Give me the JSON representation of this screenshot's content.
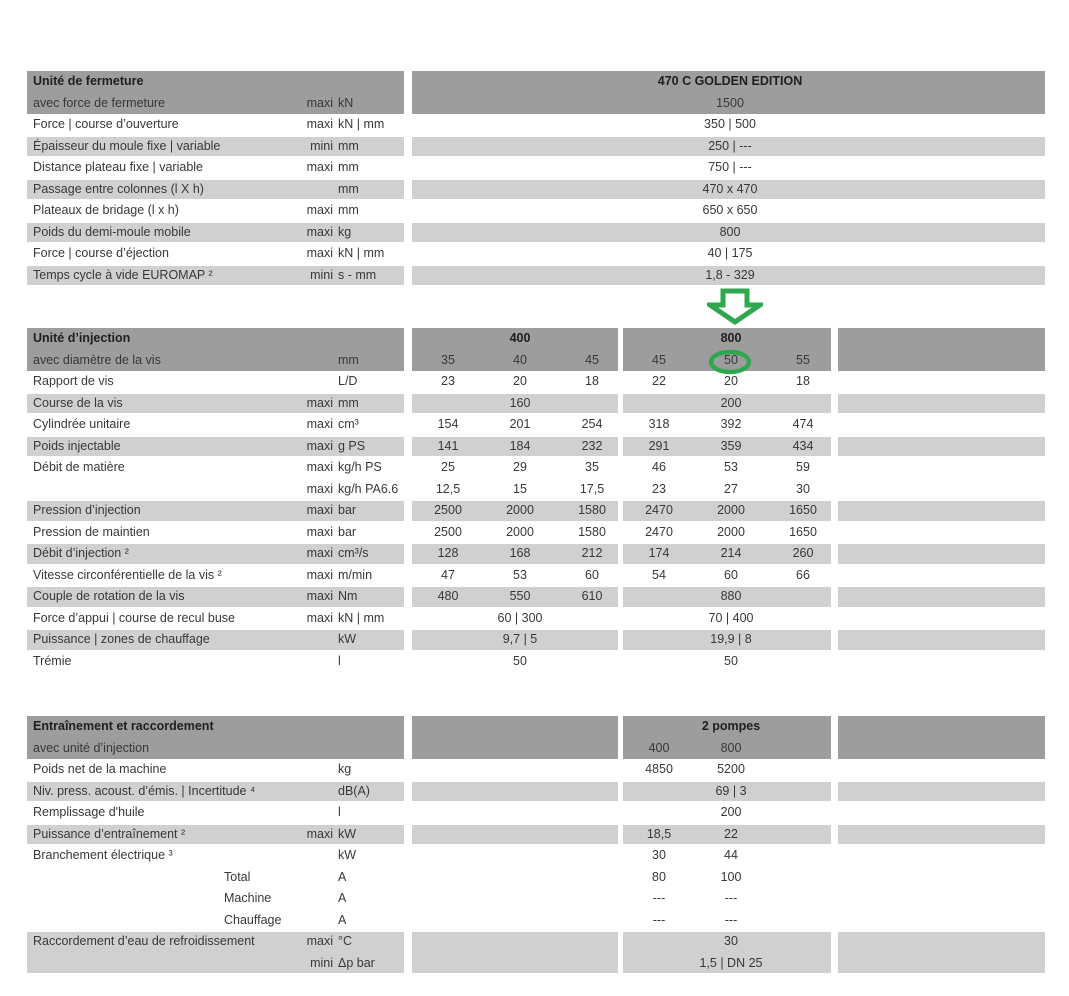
{
  "colors": {
    "dark_band": "#9d9d9d",
    "light_band": "#d0d0d0",
    "text": "#383838",
    "title_text": "#1f1f1f",
    "annotation_green": "#2ea84f",
    "background": "#ffffff"
  },
  "annotations": {
    "arrow": {
      "shape": "block-arrow-down",
      "color": "#2ea84f",
      "points_to": "800"
    },
    "circle": {
      "shape": "ellipse-outline",
      "color": "#2ea84f",
      "around_value": "50"
    }
  },
  "sections": [
    {
      "id": "unite-de-fermeture",
      "title": "Unité de fermeture",
      "model_header": "470 C GOLDEN EDITION",
      "subtitle_row": {
        "label": "avec force de fermeture",
        "qualifier": "maxi",
        "unit": "kN",
        "value": "1500"
      },
      "rows": [
        {
          "label": "Force | course d’ouverture",
          "qualifier": "maxi",
          "unit": "kN | mm",
          "value": "350 | 500",
          "band": false
        },
        {
          "label": "Épaisseur du moule fixe | variable",
          "qualifier": "mini",
          "unit": "mm",
          "value": "250 | ---",
          "band": true
        },
        {
          "label": "Distance plateau fixe | variable",
          "qualifier": "maxi",
          "unit": "mm",
          "value": "750 | ---",
          "band": false
        },
        {
          "label": "Passage entre colonnes (l X h)",
          "qualifier": "",
          "unit": "mm",
          "value": "470 x 470",
          "band": true
        },
        {
          "label": "Plateaux de bridage (l x h)",
          "qualifier": "maxi",
          "unit": "mm",
          "value": "650 x 650",
          "band": false
        },
        {
          "label": "Poids du demi-moule mobile",
          "qualifier": "maxi",
          "unit": "kg",
          "value": "800",
          "band": true
        },
        {
          "label": "Force | course d’éjection",
          "qualifier": "maxi",
          "unit": "kN | mm",
          "value": "40 | 175",
          "band": false
        },
        {
          "label": "Temps cycle à vide EUROMAP ²",
          "qualifier": "mini",
          "unit": "s - mm",
          "value": "1,8 - 329",
          "band": true
        }
      ]
    },
    {
      "id": "unite-d-injection",
      "title": "Unité d’injection",
      "subtitle_row": {
        "label": "avec diamètre de la vis",
        "qualifier": "",
        "unit": "mm"
      },
      "groups": [
        {
          "title": "400",
          "diameters": [
            "35",
            "40",
            "45"
          ]
        },
        {
          "title": "800",
          "diameters": [
            "45",
            "50",
            "55"
          ]
        }
      ],
      "rows": [
        {
          "label": "Rapport de vis",
          "qualifier": "",
          "unit": "L/D",
          "g1": [
            "23",
            "20",
            "18"
          ],
          "g2": [
            "22",
            "20",
            "18"
          ],
          "band": false
        },
        {
          "label": "Course de la vis",
          "qualifier": "maxi",
          "unit": "mm",
          "g1": "160",
          "g2": "200",
          "band": true
        },
        {
          "label": "Cylindrée unitaire",
          "qualifier": "maxi",
          "unit": "cm³",
          "g1": [
            "154",
            "201",
            "254"
          ],
          "g2": [
            "318",
            "392",
            "474"
          ],
          "band": false
        },
        {
          "label": "Poids injectable",
          "qualifier": "maxi",
          "unit": "g PS",
          "g1": [
            "141",
            "184",
            "232"
          ],
          "g2": [
            "291",
            "359",
            "434"
          ],
          "band": true
        },
        {
          "label": "Débit de matière",
          "qualifier": "maxi",
          "unit": "kg/h PS",
          "g1": [
            "25",
            "29",
            "35"
          ],
          "g2": [
            "46",
            "53",
            "59"
          ],
          "band": false
        },
        {
          "label": "",
          "qualifier": "maxi",
          "unit": "kg/h PA6.6",
          "g1": [
            "12,5",
            "15",
            "17,5"
          ],
          "g2": [
            "23",
            "27",
            "30"
          ],
          "band": false
        },
        {
          "label": "Pression d’injection",
          "qualifier": "maxi",
          "unit": "bar",
          "g1": [
            "2500",
            "2000",
            "1580"
          ],
          "g2": [
            "2470",
            "2000",
            "1650"
          ],
          "band": true
        },
        {
          "label": "Pression de maintien",
          "qualifier": "maxi",
          "unit": "bar",
          "g1": [
            "2500",
            "2000",
            "1580"
          ],
          "g2": [
            "2470",
            "2000",
            "1650"
          ],
          "band": false
        },
        {
          "label": "Débit d’injection ²",
          "qualifier": "maxi",
          "unit": "cm³/s",
          "g1": [
            "128",
            "168",
            "212"
          ],
          "g2": [
            "174",
            "214",
            "260"
          ],
          "band": true
        },
        {
          "label": "Vitesse circonférentielle de la vis ²",
          "qualifier": "maxi",
          "unit": "m/min",
          "g1": [
            "47",
            "53",
            "60"
          ],
          "g2": [
            "54",
            "60",
            "66"
          ],
          "band": false
        },
        {
          "label": "Couple de rotation de la vis",
          "qualifier": "maxi",
          "unit": "Nm",
          "g1": [
            "480",
            "550",
            "610"
          ],
          "g2": "880",
          "band": true
        },
        {
          "label": "Force d’appui | course de recul buse",
          "qualifier": "maxi",
          "unit": "kN | mm",
          "g1": "60 | 300",
          "g2": "70 | 400",
          "band": false
        },
        {
          "label": "Puissance | zones de chauffage",
          "qualifier": "",
          "unit": "kW",
          "g1": "9,7 | 5",
          "g2": "19,9 | 8",
          "band": true
        },
        {
          "label": "Trémie",
          "qualifier": "",
          "unit": "l",
          "g1": "50",
          "g2": "50",
          "band": false
        }
      ]
    },
    {
      "id": "entrainement-et-raccordement",
      "title": "Entraînement et raccordement",
      "subtitle": "avec unité d’injection",
      "group_title": "2 pompes",
      "column_headers": [
        "400",
        "800"
      ],
      "rows": [
        {
          "label": "Poids net de la machine",
          "qualifier": "",
          "unit": "kg",
          "values": [
            "4850",
            "5200"
          ],
          "band": false
        },
        {
          "label": "Niv. press. acoust. d’émis. | Incertitude ⁴",
          "qualifier": "",
          "unit": "dB(A)",
          "merged": "69 | 3",
          "band": true
        },
        {
          "label": "Remplissage d'huile",
          "qualifier": "",
          "unit": "l",
          "merged": "200",
          "band": false
        },
        {
          "label": "Puissance d’entraînement ²",
          "qualifier": "maxi",
          "unit": "kW",
          "values": [
            "18,5",
            "22"
          ],
          "band": true
        },
        {
          "label": "Branchement électrique ³",
          "qualifier": "",
          "unit": "kW",
          "values": [
            "30",
            "44"
          ],
          "band": false
        },
        {
          "label": "Total",
          "indent": true,
          "qualifier": "",
          "unit": "A",
          "values": [
            "80",
            "100"
          ],
          "band": false
        },
        {
          "label": "Machine",
          "indent": true,
          "qualifier": "",
          "unit": "A",
          "values": [
            "---",
            "---"
          ],
          "band": false
        },
        {
          "label": "Chauffage",
          "indent": true,
          "qualifier": "",
          "unit": "A",
          "values": [
            "---",
            "---"
          ],
          "band": false
        },
        {
          "label": "Raccordement d’eau de refroidissement",
          "qualifier": "maxi",
          "unit": "°C",
          "merged": "30",
          "band": true,
          "band_join": "down"
        },
        {
          "label": "",
          "qualifier": "mini",
          "unit": "Δp bar",
          "merged": "1,5 | DN 25",
          "band": true,
          "band_join": "up"
        }
      ]
    }
  ]
}
